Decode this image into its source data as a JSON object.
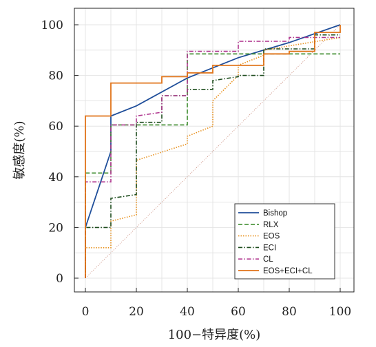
{
  "chart_data": {
    "type": "line",
    "xlabel": "100−特异度(%)",
    "ylabel": "敏感度(%)",
    "xlim": [
      0,
      100
    ],
    "ylim": [
      0,
      100
    ],
    "x_ticks": [
      "0",
      "20",
      "40",
      "60",
      "80",
      "100"
    ],
    "y_ticks": [
      "0",
      "20",
      "40",
      "60",
      "80",
      "100"
    ],
    "grid": true,
    "legend_position": "bottom-right",
    "reference_line": {
      "x": [
        0,
        100
      ],
      "y": [
        0,
        100
      ],
      "color": "#c98a7a"
    },
    "series": [
      {
        "name": "Bishop",
        "color": "#1f4e9a",
        "dash": "solid",
        "x": [
          0,
          10,
          10,
          20,
          40,
          60,
          80,
          100
        ],
        "y": [
          20,
          50,
          64,
          68,
          79,
          87,
          93,
          100
        ]
      },
      {
        "name": "RLX",
        "color": "#3a8a2a",
        "dash": "dashed",
        "x": [
          0,
          0,
          10,
          10,
          20,
          20,
          40,
          40,
          60,
          60,
          100
        ],
        "y": [
          0,
          41.5,
          41.5,
          60.5,
          60.5,
          60.5,
          60.5,
          88.5,
          88.5,
          88.5,
          88.5
        ]
      },
      {
        "name": "EOS",
        "color": "#e8901c",
        "dash": "dotted",
        "x": [
          0,
          0,
          10,
          10,
          20,
          20,
          40,
          40,
          50,
          50,
          60,
          60,
          70,
          70,
          100
        ],
        "y": [
          0,
          12,
          12,
          22.5,
          25,
          46.5,
          53,
          56,
          60,
          70,
          80,
          84,
          88,
          90,
          95
        ]
      },
      {
        "name": "ECI",
        "color": "#1e4d1e",
        "dash": "dashdot",
        "x": [
          0,
          0,
          10,
          10,
          20,
          20,
          30,
          30,
          40,
          40,
          50,
          50,
          60,
          60,
          70,
          70,
          90,
          90,
          100
        ],
        "y": [
          0,
          20,
          20,
          31.5,
          33,
          61.5,
          61.5,
          72,
          72,
          74.5,
          74.5,
          78,
          79.5,
          80,
          80,
          90.5,
          90.5,
          96,
          96
        ]
      },
      {
        "name": "CL",
        "color": "#b0378f",
        "dash": "dashdot",
        "x": [
          0,
          0,
          10,
          10,
          20,
          20,
          30,
          30,
          40,
          40,
          60,
          60,
          80,
          80,
          100
        ],
        "y": [
          0,
          38,
          38,
          60.5,
          60.5,
          64,
          65.5,
          72,
          72,
          89.5,
          89.5,
          93.5,
          93.5,
          95,
          95
        ]
      },
      {
        "name": "EOS+ECI+CL",
        "color": "#e07318",
        "dash": "solid",
        "x": [
          0,
          0,
          10,
          10,
          30,
          30,
          40,
          40,
          50,
          50,
          70,
          70,
          80,
          80,
          90,
          90,
          100,
          100
        ],
        "y": [
          0,
          64,
          64,
          77,
          77,
          79.5,
          79.5,
          81,
          81,
          84,
          84,
          88.5,
          88.5,
          89.5,
          89.5,
          97,
          97,
          100
        ]
      }
    ]
  }
}
